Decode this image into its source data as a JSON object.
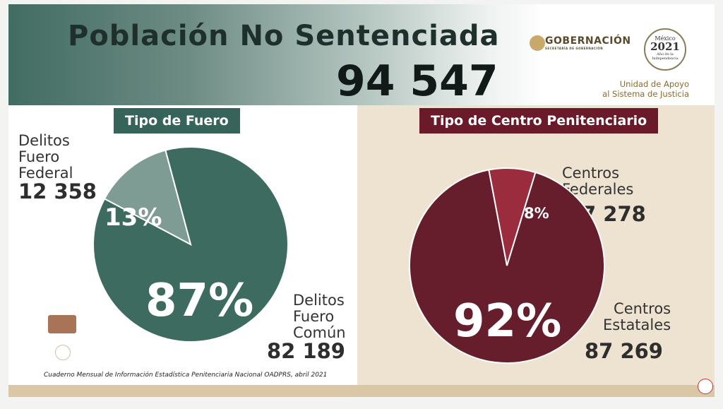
{
  "header": {
    "title": "Población No Sentenciada",
    "total": "94 547",
    "gob_label": "GOBERNACIÓN",
    "gob_sub": "SECRETARÍA DE GOBERNACIÓN",
    "year_badge_top": "México",
    "year_badge_year": "2021",
    "year_badge_bottom": "Año de la Independencia",
    "unidad_line1": "Unidad de Apoyo",
    "unidad_line2": "al Sistema de Justicia"
  },
  "left": {
    "tag": "Tipo de Fuero",
    "federal_label": [
      "Delitos",
      "Fuero",
      "Federal"
    ],
    "federal_value": "12 358",
    "comun_label": [
      "Delitos",
      "Fuero",
      "Común"
    ],
    "comun_value": "82 189",
    "pct_small": "13%",
    "pct_big": "87%"
  },
  "right": {
    "tag": "Tipo de Centro Penitenciario",
    "federal_label": [
      "Centros",
      "Federales"
    ],
    "federal_value": "7 278",
    "estatal_label": [
      "Centros",
      "Estatales"
    ],
    "estatal_value": "87 269",
    "pct_small": "8%",
    "pct_big": "92%"
  },
  "footer": {
    "source": "Cuaderno Mensual de Información Estadística Penitenciaria Nacional OADPRS, abril 2021"
  },
  "chart_data": [
    {
      "type": "pie",
      "title": "Tipo de Fuero",
      "slices": [
        {
          "label": "Delitos Fuero Común",
          "value": 82189,
          "percent": 87,
          "color": "#3e6b60"
        },
        {
          "label": "Delitos Fuero Federal",
          "value": 12358,
          "percent": 13,
          "color": "#7f9c94"
        }
      ]
    },
    {
      "type": "pie",
      "title": "Tipo de Centro Penitenciario",
      "slices": [
        {
          "label": "Centros Estatales",
          "value": 87269,
          "percent": 92,
          "color": "#661d2c"
        },
        {
          "label": "Centros Federales",
          "value": 7278,
          "percent": 8,
          "color": "#9a2c3e"
        }
      ]
    }
  ],
  "colors": {
    "header_green": "#426c62",
    "fuero_tag": "#37645a",
    "centro_tag": "#6b1a2a",
    "right_bg": "#eee3d0",
    "bottom_bar": "#d9c7a6"
  }
}
